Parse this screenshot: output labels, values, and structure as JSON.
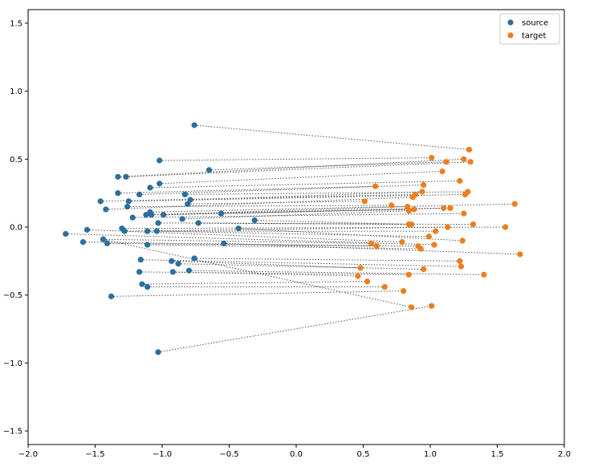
{
  "chart_data": {
    "type": "scatter",
    "title": "",
    "xlabel": "",
    "ylabel": "",
    "xlim": [
      -2.0,
      2.0
    ],
    "ylim": [
      -1.6,
      1.6
    ],
    "xticks": [
      -2.0,
      -1.5,
      -1.0,
      -0.5,
      0.0,
      0.5,
      1.0,
      1.5,
      2.0
    ],
    "yticks": [
      -1.5,
      -1.0,
      -0.5,
      0.0,
      0.5,
      1.0,
      1.5
    ],
    "xtick_labels": [
      "−2.0",
      "−1.5",
      "−1.0",
      "−0.5",
      "0.0",
      "0.5",
      "1.0",
      "1.5",
      "2.0"
    ],
    "ytick_labels": [
      "−1.5",
      "−1.0",
      "−0.5",
      "0.0",
      "0.5",
      "1.0",
      "1.5"
    ],
    "grid": false,
    "legend_position": "top-right",
    "colors": {
      "source": "#2a6f9e",
      "target": "#ef7d1e",
      "connector": "#555555"
    },
    "series": [
      {
        "name": "source",
        "color": "#2a6f9e"
      },
      {
        "name": "target",
        "color": "#ef7d1e"
      }
    ],
    "pairs": [
      {
        "source": [
          -0.76,
          0.75
        ],
        "target": [
          1.29,
          0.57
        ]
      },
      {
        "source": [
          -1.02,
          0.49
        ],
        "target": [
          1.01,
          0.51
        ]
      },
      {
        "source": [
          -0.65,
          0.42
        ],
        "target": [
          1.12,
          0.48
        ]
      },
      {
        "source": [
          -1.33,
          0.37
        ],
        "target": [
          1.25,
          0.5
        ]
      },
      {
        "source": [
          -1.27,
          0.37
        ],
        "target": [
          1.3,
          0.48
        ]
      },
      {
        "source": [
          -1.02,
          0.32
        ],
        "target": [
          1.09,
          0.41
        ]
      },
      {
        "source": [
          -1.09,
          0.29
        ],
        "target": [
          1.22,
          0.34
        ]
      },
      {
        "source": [
          -1.33,
          0.25
        ],
        "target": [
          0.59,
          0.3
        ]
      },
      {
        "source": [
          -1.17,
          0.24
        ],
        "target": [
          0.95,
          0.31
        ]
      },
      {
        "source": [
          -0.83,
          0.24
        ],
        "target": [
          1.28,
          0.26
        ]
      },
      {
        "source": [
          -0.79,
          0.2
        ],
        "target": [
          0.94,
          0.26
        ]
      },
      {
        "source": [
          -1.25,
          0.19
        ],
        "target": [
          1.26,
          0.24
        ]
      },
      {
        "source": [
          -1.46,
          0.19
        ],
        "target": [
          0.89,
          0.24
        ]
      },
      {
        "source": [
          -0.81,
          0.17
        ],
        "target": [
          0.51,
          0.19
        ]
      },
      {
        "source": [
          -1.26,
          0.15
        ],
        "target": [
          0.71,
          0.16
        ]
      },
      {
        "source": [
          -1.42,
          0.13
        ],
        "target": [
          0.87,
          0.22
        ]
      },
      {
        "source": [
          -1.09,
          0.11
        ],
        "target": [
          1.63,
          0.17
        ]
      },
      {
        "source": [
          -1.12,
          0.09
        ],
        "target": [
          0.83,
          0.15
        ]
      },
      {
        "source": [
          -1.08,
          0.09
        ],
        "target": [
          1.1,
          0.14
        ]
      },
      {
        "source": [
          -0.99,
          0.09
        ],
        "target": [
          1.15,
          0.14
        ]
      },
      {
        "source": [
          -0.56,
          0.1
        ],
        "target": [
          0.88,
          0.13
        ]
      },
      {
        "source": [
          -1.22,
          0.07
        ],
        "target": [
          1.25,
          0.1
        ]
      },
      {
        "source": [
          -0.85,
          0.06
        ],
        "target": [
          0.84,
          0.12
        ]
      },
      {
        "source": [
          -0.31,
          0.05
        ],
        "target": [
          0.84,
          0.02
        ]
      },
      {
        "source": [
          -1.03,
          0.03
        ],
        "target": [
          1.32,
          0.02
        ]
      },
      {
        "source": [
          -0.73,
          0.03
        ],
        "target": [
          0.86,
          0.02
        ]
      },
      {
        "source": [
          -1.3,
          -0.01
        ],
        "target": [
          1.56,
          0.0
        ]
      },
      {
        "source": [
          -1.28,
          -0.03
        ],
        "target": [
          1.13,
          0.0
        ]
      },
      {
        "source": [
          -1.11,
          -0.03
        ],
        "target": [
          1.04,
          -0.03
        ]
      },
      {
        "source": [
          -1.04,
          -0.03
        ],
        "target": [
          0.99,
          -0.07
        ]
      },
      {
        "source": [
          -0.43,
          -0.01
        ],
        "target": [
          1.24,
          -0.1
        ]
      },
      {
        "source": [
          -1.56,
          -0.02
        ],
        "target": [
          0.79,
          -0.11
        ]
      },
      {
        "source": [
          -1.72,
          -0.05
        ],
        "target": [
          1.03,
          -0.13
        ]
      },
      {
        "source": [
          -1.44,
          -0.09
        ],
        "target": [
          0.56,
          -0.12
        ]
      },
      {
        "source": [
          -1.59,
          -0.11
        ],
        "target": [
          0.6,
          -0.14
        ]
      },
      {
        "source": [
          -1.41,
          -0.12
        ],
        "target": [
          0.91,
          -0.14
        ]
      },
      {
        "source": [
          -1.11,
          -0.13
        ],
        "target": [
          0.93,
          -0.16
        ]
      },
      {
        "source": [
          -0.54,
          -0.12
        ],
        "target": [
          1.67,
          -0.2
        ]
      },
      {
        "source": [
          -0.76,
          -0.23
        ],
        "target": [
          1.22,
          -0.25
        ]
      },
      {
        "source": [
          -1.16,
          -0.24
        ],
        "target": [
          1.23,
          -0.29
        ]
      },
      {
        "source": [
          -0.93,
          -0.25
        ],
        "target": [
          0.48,
          -0.3
        ]
      },
      {
        "source": [
          -0.88,
          -0.27
        ],
        "target": [
          0.95,
          -0.31
        ]
      },
      {
        "source": [
          -0.8,
          -0.32
        ],
        "target": [
          1.4,
          -0.35
        ]
      },
      {
        "source": [
          -0.92,
          -0.33
        ],
        "target": [
          0.46,
          -0.36
        ]
      },
      {
        "source": [
          -1.17,
          -0.33
        ],
        "target": [
          0.84,
          -0.35
        ]
      },
      {
        "source": [
          -1.15,
          -0.42
        ],
        "target": [
          0.53,
          -0.4
        ]
      },
      {
        "source": [
          -1.11,
          -0.44
        ],
        "target": [
          0.66,
          -0.44
        ]
      },
      {
        "source": [
          -1.38,
          -0.51
        ],
        "target": [
          0.8,
          -0.47
        ]
      },
      {
        "source": [
          -1.03,
          -0.92
        ],
        "target": [
          1.01,
          -0.58
        ]
      },
      {
        "source": [
          -1.44,
          -0.09
        ],
        "target": [
          0.86,
          -0.59
        ]
      }
    ],
    "legend": [
      {
        "label": "source",
        "color": "#2a6f9e"
      },
      {
        "label": "target",
        "color": "#ef7d1e"
      }
    ]
  }
}
